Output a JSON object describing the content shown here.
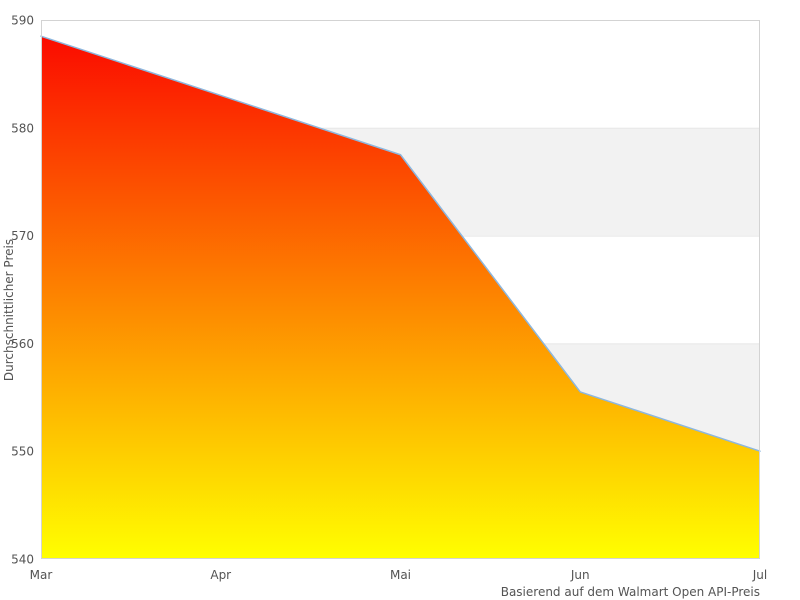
{
  "chart_data": {
    "type": "area",
    "categories": [
      "Mar",
      "Apr",
      "Mai",
      "Jun",
      "Jul"
    ],
    "series": [
      {
        "name": "Durchschnittlicher Preis",
        "values": [
          588.5,
          583,
          577.5,
          555.5,
          550
        ]
      }
    ],
    "title": "",
    "xlabel": "",
    "ylabel": "Durchschnittlicher Preis",
    "caption": "Basierend auf dem Walmart Open API-Preis",
    "ylim": [
      540,
      590
    ],
    "yticks": [
      540,
      550,
      560,
      570,
      580,
      590
    ],
    "grid": "horizontal alternating bands",
    "band_rows": [
      [
        550,
        560
      ],
      [
        570,
        580
      ]
    ],
    "legend_position": "none",
    "marker": "none",
    "colors": {
      "area_gradient_top": "#fb0300",
      "area_gradient_bottom": "#ffff00",
      "line": "#8db7de",
      "band_fill": "#f2f2f2",
      "grid_line": "#e7e7e7",
      "plot_border": "#d3d3d3",
      "text": "#545454",
      "background": "#ffffff"
    }
  }
}
